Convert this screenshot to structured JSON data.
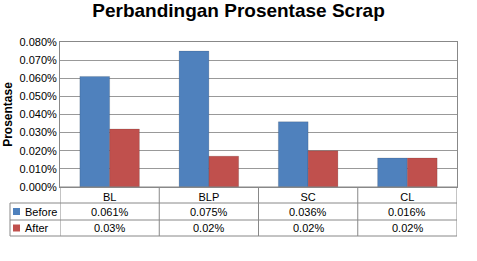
{
  "chart_data": {
    "type": "bar",
    "title": "Perbandingan Prosentase Scrap",
    "y_label": "Prosentase",
    "categories": [
      "BL",
      "BLP",
      "SC",
      "CL"
    ],
    "series": [
      {
        "name": "Before",
        "color": "#4f81bd",
        "values": [
          0.061,
          0.075,
          0.036,
          0.016
        ],
        "value_labels": [
          "0.061%",
          "0.075%",
          "0.036%",
          "0.016%"
        ]
      },
      {
        "name": "After",
        "color": "#c0504d",
        "values": [
          0.032,
          0.017,
          0.02,
          0.016
        ],
        "value_labels": [
          "0.03%",
          "0.02%",
          "0.02%",
          "0.02%"
        ]
      }
    ],
    "ylim": [
      0,
      0.08
    ],
    "yticks": [
      {
        "value": 0,
        "label": "0.000%"
      },
      {
        "value": 0.01,
        "label": "0.010%"
      },
      {
        "value": 0.02,
        "label": "0.020%"
      },
      {
        "value": 0.03,
        "label": "0.030%"
      },
      {
        "value": 0.04,
        "label": "0.040%"
      },
      {
        "value": 0.05,
        "label": "0.050%"
      },
      {
        "value": 0.06,
        "label": "0.060%"
      },
      {
        "value": 0.07,
        "label": "0.070%"
      },
      {
        "value": 0.08,
        "label": "0.080%"
      }
    ],
    "grid": true
  }
}
